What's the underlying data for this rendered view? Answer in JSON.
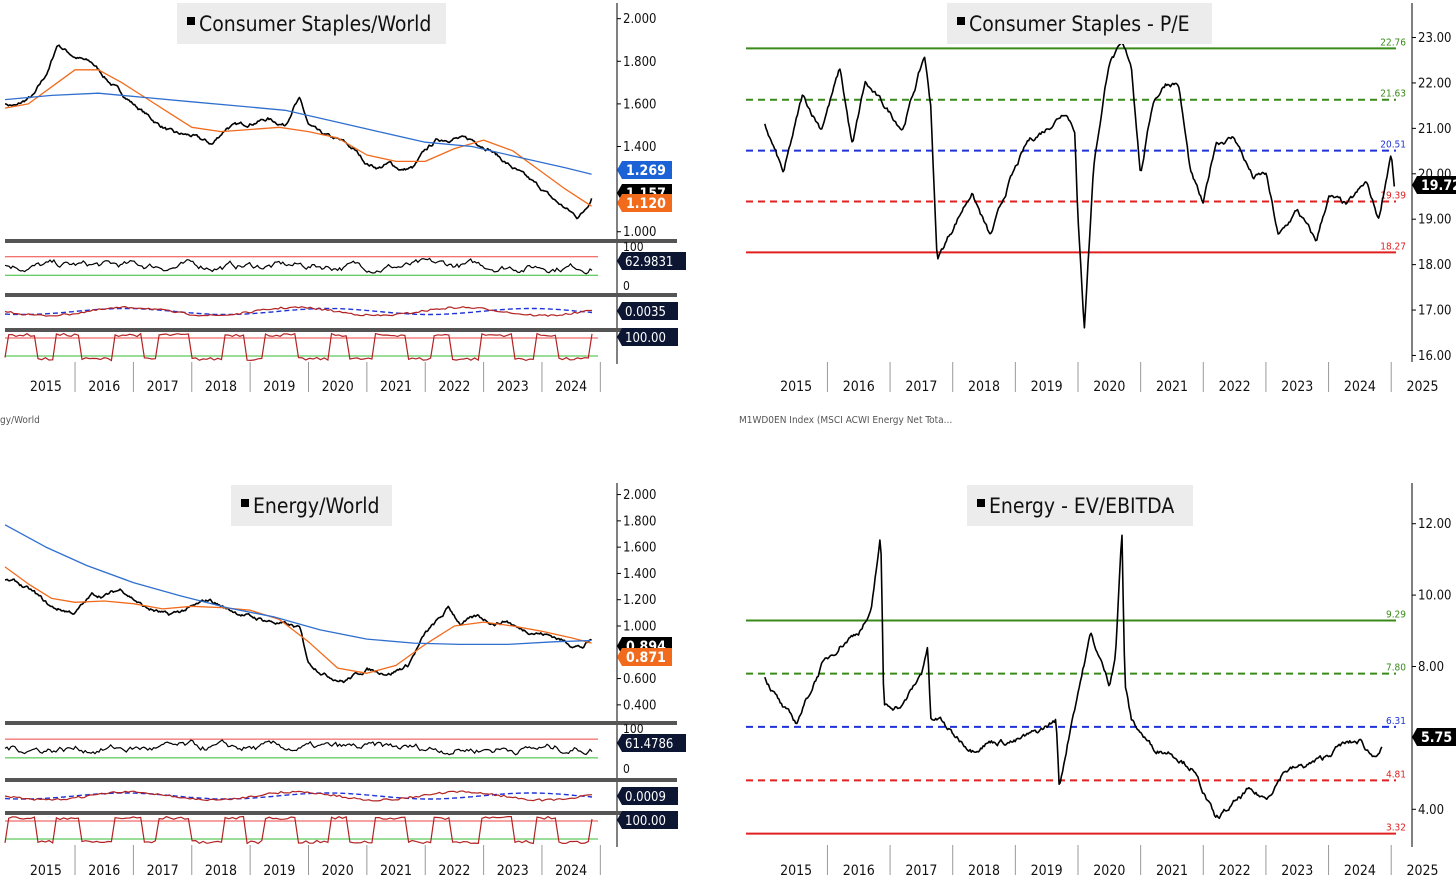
{
  "chart_data": [
    {
      "type": "line",
      "title": "Consumer Staples/World",
      "x_labels": [
        "2015",
        "2016",
        "2017",
        "2018",
        "2019",
        "2020",
        "2021",
        "2022",
        "2023",
        "2024"
      ],
      "ylim": [
        1.0,
        2.0
      ],
      "y_ticks": [
        "2.000",
        "1.800",
        "1.600",
        "1.400",
        "1.000"
      ],
      "series": [
        {
          "role": "price",
          "color": "#000000",
          "x": [
            2014.8,
            2015.0,
            2015.3,
            2015.55,
            2015.7,
            2016.0,
            2016.3,
            2016.6,
            2017.0,
            2017.4,
            2017.7,
            2018.0,
            2018.35,
            2018.6,
            2019.0,
            2019.3,
            2019.6,
            2019.75,
            2019.85,
            2020.0,
            2020.2,
            2020.4,
            2020.6,
            2020.8,
            2021.0,
            2021.2,
            2021.4,
            2021.6,
            2021.8,
            2022.0,
            2022.2,
            2022.5,
            2022.8,
            2023.1,
            2023.4,
            2023.6,
            2023.8,
            2024.0,
            2024.2,
            2024.4,
            2024.6,
            2024.7,
            2024.85
          ],
          "values": [
            1.6,
            1.59,
            1.64,
            1.76,
            1.88,
            1.82,
            1.79,
            1.7,
            1.6,
            1.51,
            1.46,
            1.45,
            1.41,
            1.49,
            1.51,
            1.53,
            1.5,
            1.59,
            1.62,
            1.5,
            1.46,
            1.44,
            1.42,
            1.38,
            1.32,
            1.3,
            1.32,
            1.29,
            1.3,
            1.38,
            1.43,
            1.44,
            1.43,
            1.39,
            1.32,
            1.28,
            1.24,
            1.2,
            1.15,
            1.11,
            1.07,
            1.09,
            1.157
          ]
        },
        {
          "role": "ma_short",
          "color": "#f26b1d",
          "x": [
            2014.8,
            2015.2,
            2015.6,
            2016.0,
            2016.4,
            2016.8,
            2017.2,
            2017.6,
            2018.0,
            2018.5,
            2019.0,
            2019.5,
            2020.0,
            2020.5,
            2021.0,
            2021.5,
            2022.0,
            2022.5,
            2023.0,
            2023.5,
            2024.0,
            2024.4,
            2024.85
          ],
          "values": [
            1.58,
            1.6,
            1.68,
            1.76,
            1.76,
            1.7,
            1.63,
            1.56,
            1.49,
            1.47,
            1.48,
            1.49,
            1.47,
            1.44,
            1.36,
            1.33,
            1.33,
            1.39,
            1.43,
            1.38,
            1.28,
            1.2,
            1.12
          ]
        },
        {
          "role": "ma_long",
          "color": "#2f6fcf",
          "x": [
            2014.8,
            2015.6,
            2016.4,
            2017.2,
            2018.0,
            2018.8,
            2019.6,
            2020.4,
            2021.2,
            2022.0,
            2022.8,
            2023.6,
            2024.4,
            2024.85
          ],
          "values": [
            1.62,
            1.64,
            1.65,
            1.63,
            1.61,
            1.59,
            1.57,
            1.52,
            1.47,
            1.42,
            1.4,
            1.35,
            1.3,
            1.27
          ]
        }
      ],
      "value_tags": [
        {
          "text": "1.269",
          "bg": "#1b62d6"
        },
        {
          "text": "1.157",
          "bg": "#000000"
        },
        {
          "text": "1.120",
          "bg": "#f26b1d"
        }
      ],
      "sub_panels": [
        {
          "ticks": [
            "100",
            "0"
          ],
          "tag": "62.9831"
        },
        {
          "tag": "0.0035"
        },
        {
          "tag": "100.00"
        }
      ]
    },
    {
      "type": "line",
      "title": "Consumer Staples - P/E",
      "x_labels": [
        "2015",
        "2016",
        "2017",
        "2018",
        "2019",
        "2020",
        "2021",
        "2022",
        "2023",
        "2024",
        "2025"
      ],
      "ylim": [
        16.0,
        23.5
      ],
      "y_ticks": [
        "23.00",
        "22.00",
        "21.00",
        "20.00",
        "19.00",
        "18.00",
        "17.00",
        "16.00"
      ],
      "series": [
        {
          "role": "price",
          "color": "#000000",
          "x": [
            2015.0,
            2015.3,
            2015.6,
            2015.9,
            2016.2,
            2016.4,
            2016.6,
            2016.9,
            2017.2,
            2017.4,
            2017.55,
            2017.65,
            2017.75,
            2018.0,
            2018.3,
            2018.6,
            2018.9,
            2019.2,
            2019.5,
            2019.8,
            2019.95,
            2020.0,
            2020.1,
            2020.25,
            2020.5,
            2020.7,
            2020.85,
            2021.0,
            2021.2,
            2021.4,
            2021.6,
            2021.8,
            2022.0,
            2022.2,
            2022.5,
            2022.8,
            2023.0,
            2023.2,
            2023.5,
            2023.8,
            2024.0,
            2024.3,
            2024.6,
            2024.8,
            2025.0,
            2025.05
          ],
          "values": [
            21.1,
            20.0,
            21.7,
            21.0,
            22.3,
            20.6,
            22.0,
            21.5,
            21.0,
            21.9,
            22.6,
            21.5,
            18.1,
            18.8,
            19.6,
            18.6,
            19.8,
            20.7,
            21.0,
            21.4,
            21.0,
            19.0,
            16.6,
            20.2,
            22.5,
            22.8,
            22.4,
            20.0,
            21.6,
            22.0,
            22.0,
            20.0,
            19.3,
            20.7,
            20.8,
            19.9,
            20.0,
            18.6,
            19.2,
            18.5,
            19.5,
            19.3,
            19.8,
            19.0,
            20.5,
            19.72
          ]
        }
      ],
      "bands": [
        {
          "value": 22.76,
          "label": "22.76",
          "color": "#3a8a1a",
          "style": "solid"
        },
        {
          "value": 21.63,
          "label": "21.63",
          "color": "#3a8a1a",
          "style": "dashed"
        },
        {
          "value": 20.51,
          "label": "20.51",
          "color": "#1f33d6",
          "style": "dashed"
        },
        {
          "value": 19.39,
          "label": "19.39",
          "color": "#e02020",
          "style": "dashed"
        },
        {
          "value": 18.27,
          "label": "18.27",
          "color": "#e02020",
          "style": "solid"
        }
      ],
      "value_tags": [
        {
          "text": "19.72",
          "bg": "#000000"
        }
      ],
      "footer_label": "M1WD0EN Index (MSCI ACWI Energy Net Tota..."
    },
    {
      "type": "line",
      "title": "Energy/World",
      "x_labels": [
        "2015",
        "2016",
        "2017",
        "2018",
        "2019",
        "2020",
        "2021",
        "2022",
        "2023",
        "2024"
      ],
      "ylim": [
        0.4,
        2.0
      ],
      "y_ticks": [
        "2.000",
        "1.800",
        "1.600",
        "1.400",
        "1.200",
        "1.000",
        "0.600",
        "0.400"
      ],
      "series": [
        {
          "role": "price",
          "color": "#000000",
          "x": [
            2014.8,
            2015.0,
            2015.3,
            2015.6,
            2016.0,
            2016.3,
            2016.5,
            2016.8,
            2017.2,
            2017.6,
            2018.0,
            2018.3,
            2018.6,
            2019.0,
            2019.4,
            2019.7,
            2019.85,
            2020.0,
            2020.3,
            2020.6,
            2021.0,
            2021.4,
            2021.7,
            2022.0,
            2022.3,
            2022.4,
            2022.6,
            2022.9,
            2023.2,
            2023.4,
            2023.6,
            2023.9,
            2024.2,
            2024.5,
            2024.7,
            2024.85
          ],
          "values": [
            1.35,
            1.33,
            1.25,
            1.14,
            1.1,
            1.24,
            1.23,
            1.28,
            1.14,
            1.08,
            1.14,
            1.2,
            1.13,
            1.07,
            1.03,
            1.0,
            0.98,
            0.72,
            0.63,
            0.58,
            0.67,
            0.64,
            0.7,
            0.94,
            1.08,
            1.14,
            1.02,
            1.07,
            1.02,
            1.04,
            0.98,
            0.95,
            0.92,
            0.86,
            0.84,
            0.894
          ]
        },
        {
          "role": "ma_short",
          "color": "#f26b1d",
          "x": [
            2014.8,
            2015.2,
            2015.6,
            2016.0,
            2016.5,
            2017.0,
            2017.5,
            2018.0,
            2018.5,
            2019.0,
            2019.5,
            2020.0,
            2020.5,
            2021.0,
            2021.5,
            2022.0,
            2022.5,
            2023.0,
            2023.5,
            2024.0,
            2024.5,
            2024.85
          ],
          "values": [
            1.45,
            1.32,
            1.21,
            1.18,
            1.19,
            1.17,
            1.13,
            1.15,
            1.14,
            1.12,
            1.05,
            0.88,
            0.68,
            0.64,
            0.7,
            0.86,
            1.0,
            1.03,
            1.0,
            0.96,
            0.91,
            0.87
          ]
        },
        {
          "role": "ma_long",
          "color": "#2f6fcf",
          "x": [
            2014.8,
            2015.5,
            2016.2,
            2017.0,
            2017.8,
            2018.6,
            2019.4,
            2020.2,
            2021.0,
            2021.8,
            2022.6,
            2023.4,
            2024.2,
            2024.85
          ],
          "values": [
            1.77,
            1.6,
            1.46,
            1.33,
            1.23,
            1.14,
            1.07,
            0.97,
            0.9,
            0.87,
            0.86,
            0.86,
            0.88,
            0.89
          ]
        }
      ],
      "value_tags": [
        {
          "text": "0.894",
          "bg": "#000000"
        },
        {
          "text": "0.871",
          "bg": "#f26b1d"
        }
      ],
      "sub_panels": [
        {
          "ticks": [
            "100",
            "0"
          ],
          "tag": "61.4786"
        },
        {
          "tag": "0.0009"
        },
        {
          "tag": "100.00"
        }
      ],
      "footer_label": "gy/World"
    },
    {
      "type": "line",
      "title": "Energy - EV/EBITDA",
      "x_labels": [
        "2015",
        "2016",
        "2017",
        "2018",
        "2019",
        "2020",
        "2021",
        "2022",
        "2023",
        "2024",
        "2025"
      ],
      "ylim": [
        3.0,
        13.0
      ],
      "y_ticks": [
        "12.00",
        "10.00",
        "8.00",
        "6.00",
        "4.00"
      ],
      "series": [
        {
          "role": "price",
          "color": "#000000",
          "x": [
            2015.0,
            2015.3,
            2015.5,
            2015.7,
            2015.9,
            2016.2,
            2016.5,
            2016.7,
            2016.85,
            2016.9,
            2017.2,
            2017.5,
            2017.6,
            2017.65,
            2017.8,
            2018.0,
            2018.3,
            2018.6,
            2019.0,
            2019.4,
            2019.65,
            2019.7,
            2019.9,
            2020.2,
            2020.5,
            2020.6,
            2020.7,
            2020.75,
            2020.85,
            2021.2,
            2021.5,
            2021.8,
            2022.0,
            2022.2,
            2022.4,
            2022.7,
            2023.0,
            2023.3,
            2023.6,
            2023.9,
            2024.2,
            2024.5,
            2024.7,
            2024.85
          ],
          "values": [
            7.7,
            6.8,
            6.4,
            7.2,
            8.0,
            8.6,
            9.0,
            9.5,
            11.7,
            6.9,
            6.9,
            7.8,
            8.6,
            6.5,
            6.5,
            6.1,
            5.7,
            5.9,
            5.9,
            6.2,
            6.5,
            4.6,
            6.5,
            8.9,
            7.5,
            8.4,
            11.8,
            7.5,
            6.5,
            5.7,
            5.6,
            5.2,
            4.5,
            3.7,
            4.0,
            4.5,
            4.3,
            5.1,
            5.2,
            5.4,
            5.8,
            5.9,
            5.5,
            5.75
          ]
        }
      ],
      "bands": [
        {
          "value": 9.29,
          "label": "9.29",
          "color": "#3a8a1a",
          "style": "solid"
        },
        {
          "value": 7.8,
          "label": "7.80",
          "color": "#3a8a1a",
          "style": "dashed"
        },
        {
          "value": 6.31,
          "label": "6.31",
          "color": "#1f33d6",
          "style": "dashed"
        },
        {
          "value": 4.81,
          "label": "4.81",
          "color": "#e02020",
          "style": "dashed"
        },
        {
          "value": 3.32,
          "label": "3.32",
          "color": "#e02020",
          "style": "solid"
        }
      ],
      "value_tags": [
        {
          "text": "5.75",
          "bg": "#000000"
        }
      ]
    }
  ]
}
